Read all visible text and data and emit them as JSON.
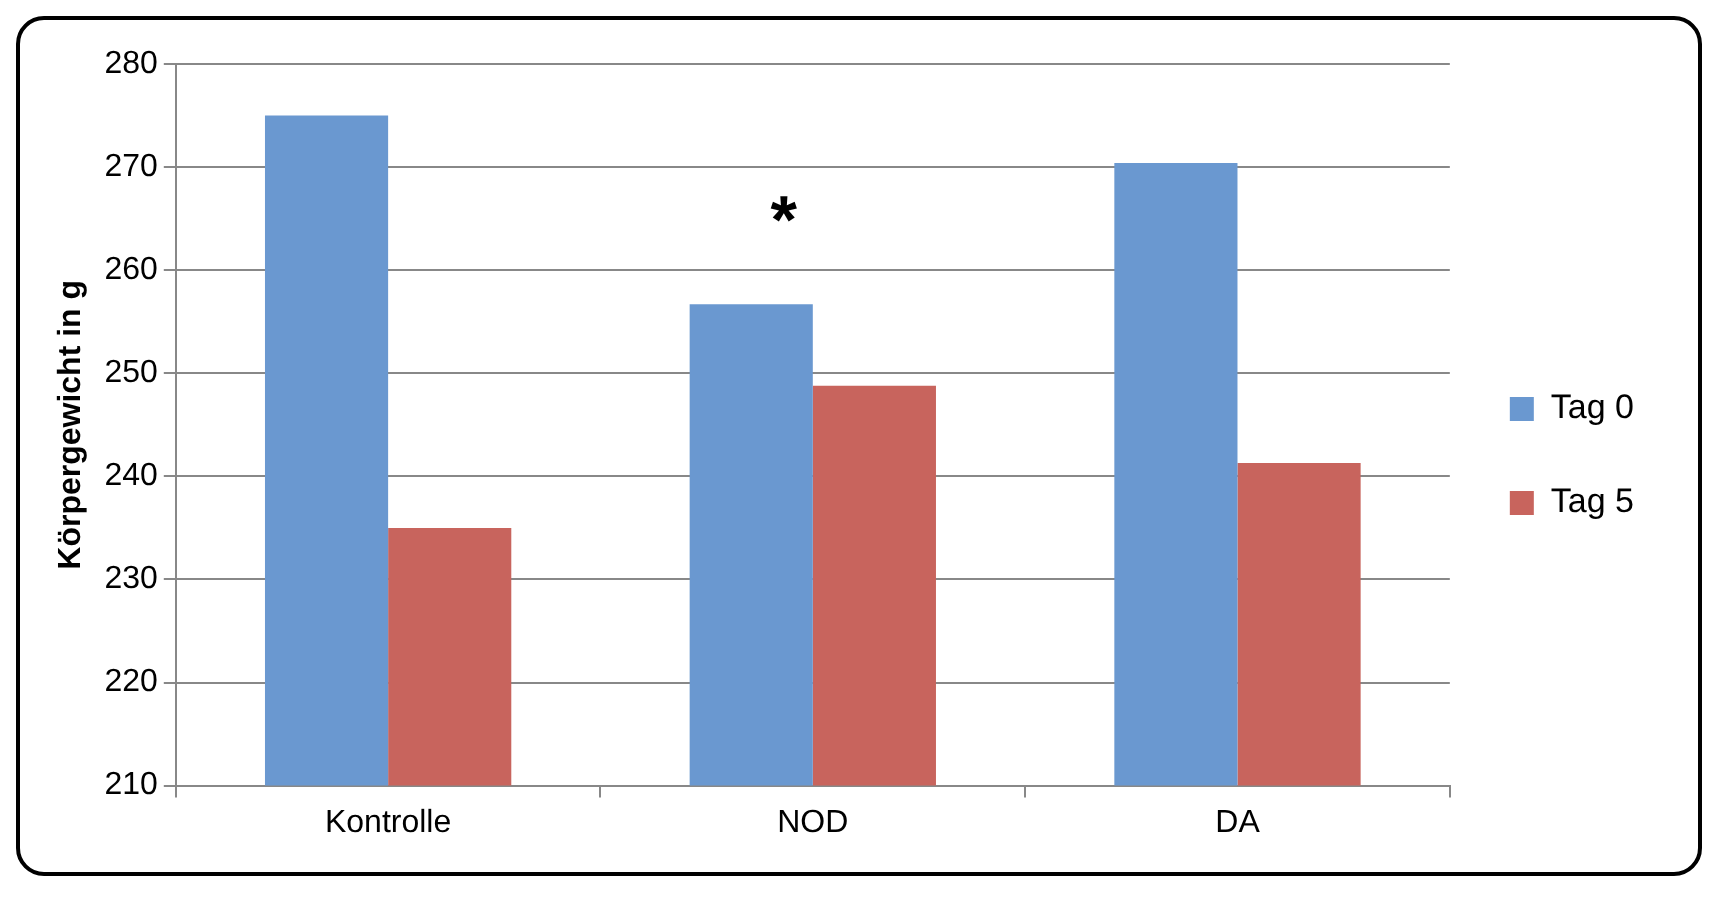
{
  "chart_data": {
    "type": "bar",
    "ylabel": "Körpergewicht in g",
    "categories": [
      "Kontrolle",
      "NOD",
      "DA"
    ],
    "series": [
      {
        "name": "Tag 0",
        "color": "#6a98d0",
        "values": [
          275,
          256.7,
          270.4
        ]
      },
      {
        "name": "Tag 5",
        "color": "#c8645d",
        "values": [
          235,
          248.8,
          241.3
        ]
      }
    ],
    "ylim": [
      210,
      280
    ],
    "yticks": [
      210,
      220,
      230,
      240,
      250,
      260,
      270,
      280
    ],
    "grid": "y",
    "legend": "right",
    "annotations": [
      "*"
    ]
  }
}
